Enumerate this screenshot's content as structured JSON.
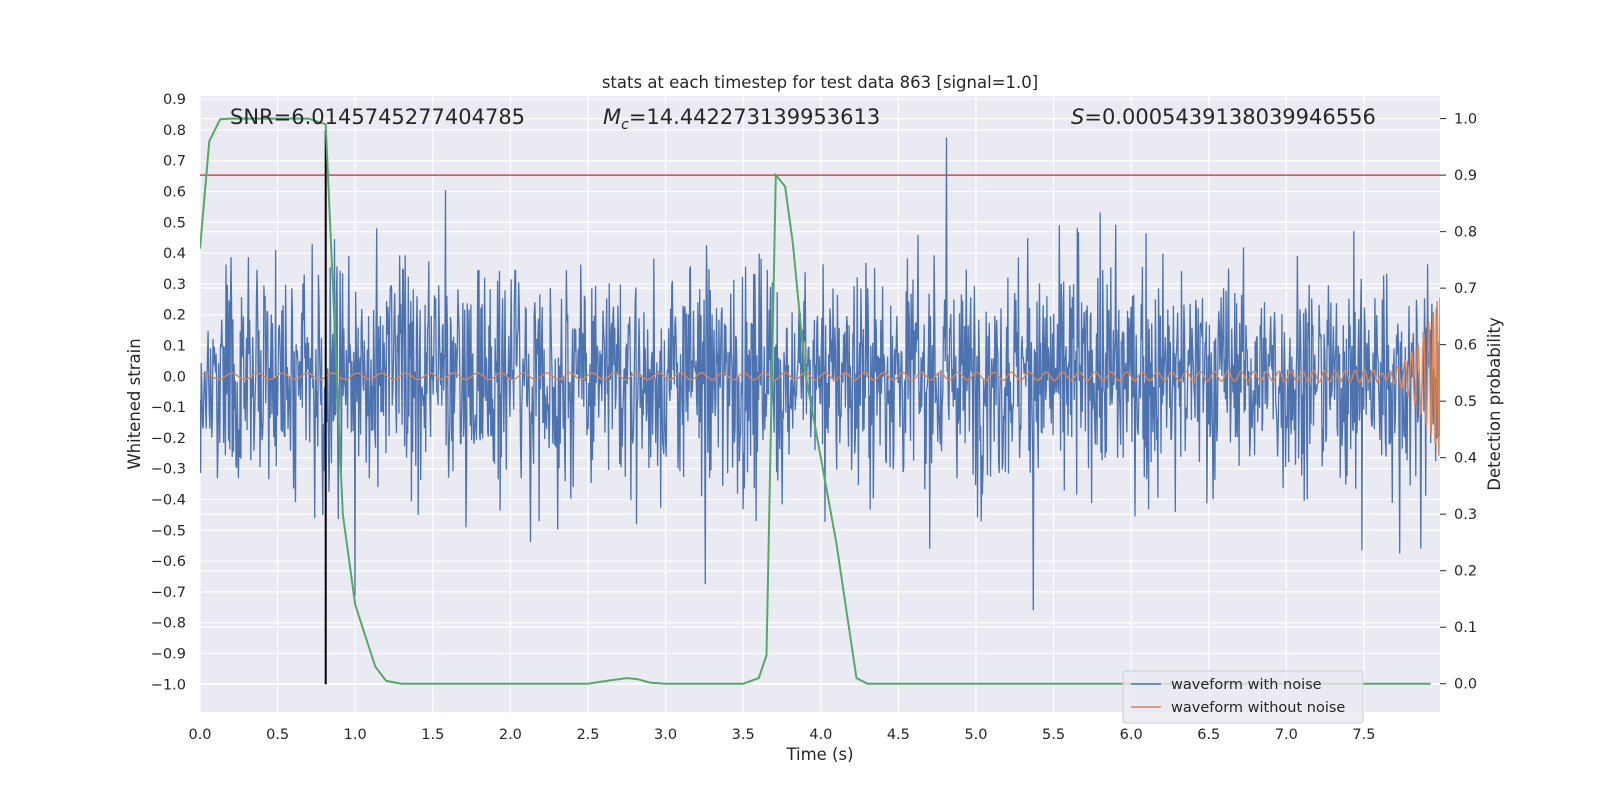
{
  "chart_data": {
    "type": "line",
    "title": "stats at each timestep for test data 863 [signal=1.0]",
    "xlabel": "Time (s)",
    "ylabel": "Whitened strain",
    "y2label": "Detection probability",
    "xlim": [
      0.0,
      7.99
    ],
    "ylim": [
      -1.09,
      0.91
    ],
    "y2lim": [
      -0.05,
      1.04
    ],
    "x_ticks": [
      "0.0",
      "0.5",
      "1.0",
      "1.5",
      "2.0",
      "2.5",
      "3.0",
      "3.5",
      "4.0",
      "4.5",
      "5.0",
      "5.5",
      "6.0",
      "6.5",
      "7.0",
      "7.5"
    ],
    "y_ticks": [
      "0.9",
      "0.8",
      "0.7",
      "0.6",
      "0.5",
      "0.4",
      "0.3",
      "0.2",
      "0.1",
      "0.0",
      "−0.1",
      "−0.2",
      "−0.3",
      "−0.4",
      "−0.5",
      "−0.6",
      "−0.7",
      "−0.8",
      "−0.9",
      "−1.0"
    ],
    "y2_ticks": [
      "1.0",
      "0.9",
      "0.8",
      "0.7",
      "0.6",
      "0.5",
      "0.4",
      "0.3",
      "0.2",
      "0.1",
      "0.0"
    ],
    "grid": true,
    "legend_position": "lower right",
    "annotations": {
      "snr": "SNR=6.0145745277404785",
      "mc_symbol": "M",
      "mc_subscript": "c",
      "mc_value": "=14.442273139953613",
      "s_symbol": "S",
      "s_value": "=0.0005439138039946556"
    },
    "threshold_probability": 0.9,
    "marker_time": 0.81,
    "series": [
      {
        "name": "waveform with noise",
        "axis": "left",
        "color": "#4c72b0",
        "description_values": {
          "typical_range": [
            -0.5,
            0.5
          ],
          "max": 0.85,
          "min": -1.0
        }
      },
      {
        "name": "waveform without noise",
        "axis": "left",
        "color": "#dd8452",
        "description_values": {
          "start_amplitude": 0.01,
          "end_amplitude": 0.27,
          "end_time": 7.99
        }
      },
      {
        "axis": "right",
        "color": "#55a868",
        "x": [
          0.0,
          0.06,
          0.13,
          0.2,
          0.3,
          0.5,
          0.7,
          0.81,
          0.87,
          0.92,
          1.0,
          1.07,
          1.13,
          1.2,
          1.3,
          1.5,
          2.0,
          2.5,
          2.62,
          2.75,
          2.82,
          2.9,
          3.0,
          3.5,
          3.6,
          3.65,
          3.71,
          3.77,
          3.82,
          3.9,
          4.0,
          4.1,
          4.17,
          4.23,
          4.3,
          4.5,
          5.0,
          6.0,
          7.0,
          7.93
        ],
        "values": [
          0.77,
          0.96,
          0.999,
          1.0,
          1.0,
          1.0,
          1.0,
          0.99,
          0.62,
          0.3,
          0.14,
          0.08,
          0.03,
          0.005,
          0.0,
          0.0,
          0.0,
          0.0,
          0.005,
          0.01,
          0.008,
          0.002,
          0.0,
          0.0,
          0.01,
          0.05,
          0.9,
          0.88,
          0.78,
          0.55,
          0.4,
          0.25,
          0.12,
          0.01,
          0.0,
          0.0,
          0.0,
          0.0,
          0.0,
          0.0
        ]
      }
    ]
  }
}
